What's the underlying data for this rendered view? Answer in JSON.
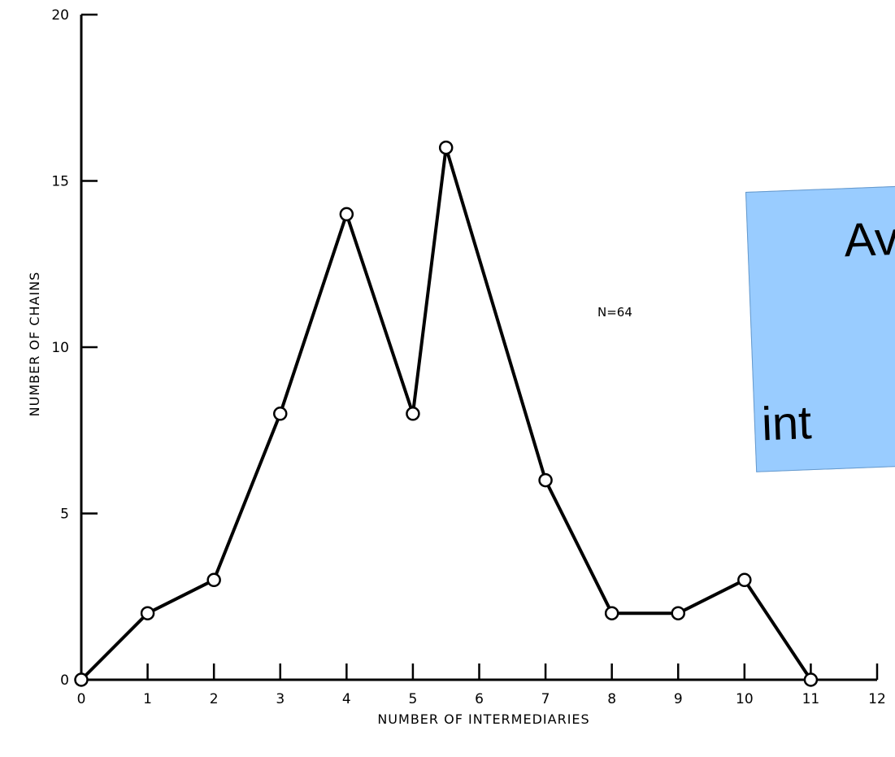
{
  "chart_data": {
    "type": "line",
    "title": "",
    "xlabel": "NUMBER OF INTERMEDIARIES",
    "ylabel": "NUMBER OF CHAINS",
    "xlim": [
      0,
      12
    ],
    "ylim": [
      0,
      20
    ],
    "x_ticks": [
      0,
      1,
      2,
      3,
      4,
      5,
      6,
      7,
      8,
      9,
      10,
      11,
      12
    ],
    "y_ticks": [
      0,
      5,
      10,
      15,
      20
    ],
    "grid": false,
    "annotation": "N=64",
    "series": [
      {
        "x": [
          0,
          1,
          2,
          3,
          4,
          5,
          5.5,
          7,
          8,
          9,
          10,
          11
        ],
        "y": [
          0,
          2,
          3,
          8,
          14,
          8,
          16,
          6,
          2,
          2,
          3,
          0
        ]
      }
    ],
    "colors": {
      "line": "#000000",
      "marker_fill": "#ffffff",
      "callout_fill": "#99ccff"
    }
  },
  "callout": {
    "line1": "Av",
    "line2": "int"
  }
}
